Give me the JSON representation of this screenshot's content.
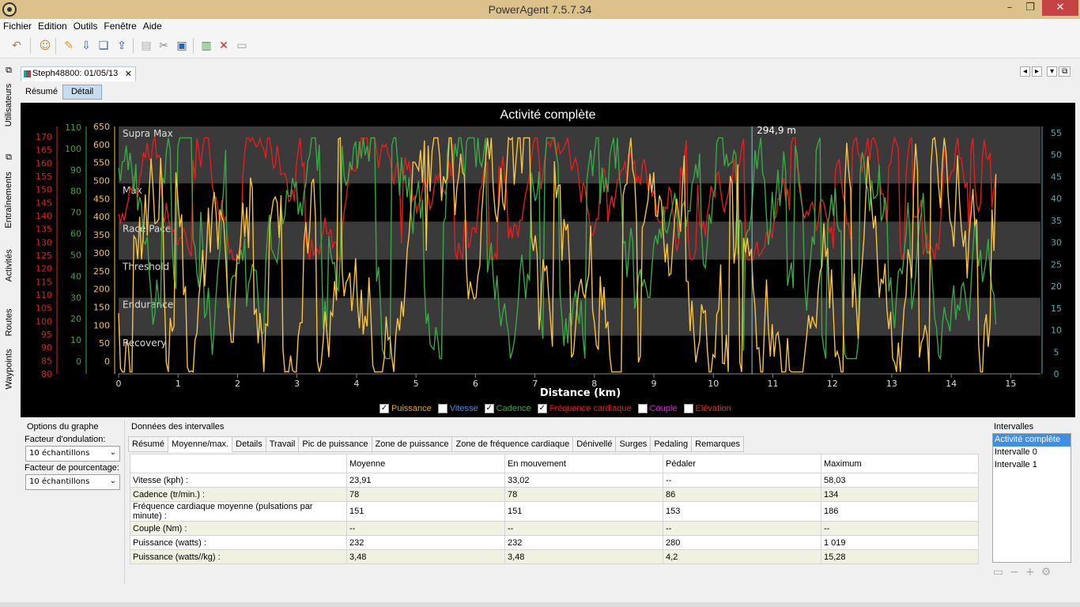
{
  "window": {
    "title": "PowerAgent 7.5.7.34"
  },
  "menu": [
    "Fichier",
    "Edition",
    "Outils",
    "Fenêtre",
    "Aide"
  ],
  "sidebar": [
    "Utilisateurs",
    "Entraînements",
    "Activités",
    "Routes",
    "Waypoints"
  ],
  "doc_tab": "Steph48800: 01/05/13",
  "view_tabs": [
    "Résumé",
    "Détail"
  ],
  "legend": [
    {
      "label": "Puissance",
      "checked": true,
      "color": "#f6c342"
    },
    {
      "label": "Vitesse",
      "checked": false,
      "color": "#4a90e2"
    },
    {
      "label": "Cadence",
      "checked": true,
      "color": "#39a845"
    },
    {
      "label": "Fréquence cardiaque",
      "checked": true,
      "color": "#e02020"
    },
    {
      "label": "Couple",
      "checked": false,
      "color": "#e020e0"
    },
    {
      "label": "Elévation",
      "checked": false,
      "color": "#e03020"
    }
  ],
  "options": {
    "title": "Options du graphe",
    "smoothing_label": "Facteur d'ondulation:",
    "smoothing_value": "10 échantillons",
    "percent_label": "Facteur de pourcentage:",
    "percent_value": "10 échantillons"
  },
  "intervals_data": {
    "title": "Données des intervalles",
    "tabs": [
      "Résumé",
      "Moyenne/max.",
      "Details",
      "Travail",
      "Pic de puissance",
      "Zone de puissance",
      "Zone de fréquence cardiaque",
      "Dénivellé",
      "Surges",
      "Pedaling",
      "Remarques"
    ],
    "columns": [
      "",
      "Moyenne",
      "En mouvement",
      "Pédaler",
      "Maximum"
    ],
    "rows": [
      [
        "Vitesse (kph) :",
        "23,91",
        "33,02",
        "--",
        "58,03"
      ],
      [
        "Cadence (tr/min.) :",
        "78",
        "78",
        "86",
        "134"
      ],
      [
        "Fréquence cardiaque moyenne (pulsations par minute) :",
        "151",
        "151",
        "153",
        "186"
      ],
      [
        "Couple (Nm) :",
        "--",
        "--",
        "--",
        "--"
      ],
      [
        "Puissance (watts) :",
        "232",
        "232",
        "280",
        "1 019"
      ],
      [
        "Puissance (watts//kg) :",
        "3,48",
        "3,48",
        "4,2",
        "15,28"
      ]
    ]
  },
  "intervals_list": {
    "title": "Intervalles",
    "items": [
      "Activité complète",
      "Intervalle 0",
      "Intervalle 1"
    ]
  },
  "chart_data": {
    "type": "line",
    "title": "Activité complète",
    "xlabel": "Distance (km)",
    "xlim": [
      0,
      15.5
    ],
    "x_ticks": [
      0,
      1,
      2,
      3,
      4,
      5,
      6,
      7,
      8,
      9,
      10,
      11,
      12,
      13,
      14,
      15
    ],
    "cursor": {
      "x": 10.65,
      "label": "294,9 m"
    },
    "zones": [
      {
        "name": "Supra Max",
        "from": 500,
        "to": 650
      },
      {
        "name": "Max",
        "from": 400,
        "to": 500
      },
      {
        "name": "Race Pace",
        "from": 300,
        "to": 400
      },
      {
        "name": "Threshold",
        "from": 200,
        "to": 300
      },
      {
        "name": "Endurance",
        "from": 100,
        "to": 200
      },
      {
        "name": "Recovery",
        "from": 0,
        "to": 100
      }
    ],
    "axes": {
      "hr": {
        "color": "#e02020",
        "ticks": [
          170,
          165,
          160,
          155,
          150,
          145,
          140,
          135,
          130,
          125,
          120,
          115,
          110,
          105,
          100,
          95,
          90,
          85,
          80
        ]
      },
      "cadence": {
        "color": "#39a845",
        "ticks": [
          110,
          100,
          90,
          80,
          70,
          60,
          50,
          40,
          30,
          20,
          10,
          0
        ]
      },
      "power": {
        "color": "#f6c342",
        "ticks": [
          650,
          600,
          550,
          500,
          450,
          400,
          350,
          300,
          250,
          200,
          150,
          100,
          50,
          0
        ]
      },
      "right": {
        "color": "#4fb0b8",
        "ticks": [
          55,
          50,
          45,
          40,
          35,
          30,
          25,
          20,
          15,
          10,
          5,
          0
        ]
      }
    },
    "series": [
      {
        "name": "Puissance",
        "color": "#f6c342"
      },
      {
        "name": "Cadence",
        "color": "#39a845"
      },
      {
        "name": "Fréquence cardiaque",
        "color": "#e02020"
      }
    ]
  }
}
